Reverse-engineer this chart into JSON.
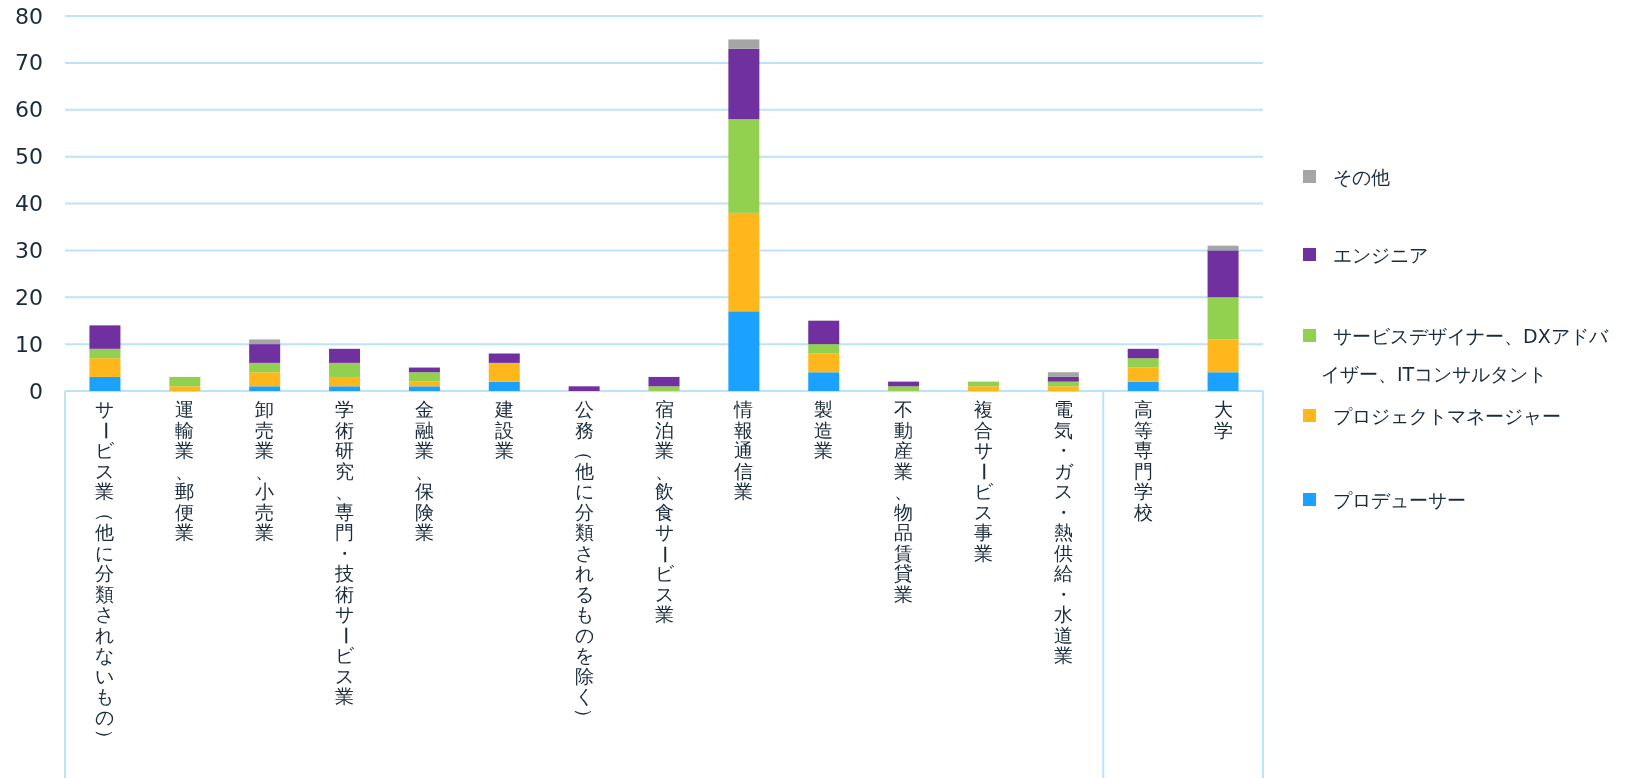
{
  "chart_data": {
    "type": "bar",
    "stacked": true,
    "grid": "y",
    "legend": "right",
    "ylim": [
      0,
      80
    ],
    "yticks": [
      0,
      10,
      20,
      30,
      40,
      50,
      60,
      70,
      80
    ],
    "categories": [
      "サービス業（他に分類されないもの）",
      "運輸業、郵便業",
      "卸売業、小売業",
      "学術研究、専門・技術サービス業",
      "金融業、保険業",
      "建設業",
      "公務（他に分類されるものを除く）",
      "宿泊業、飲食サービス業",
      "情報通信業",
      "製造業",
      "不動産業、物品賃貸業",
      "複合サービス事業",
      "電気・ガス・熱供給・水道業",
      "高等専門学校",
      "大学"
    ],
    "series": [
      {
        "name": "プロデューサー",
        "color": "#1ba1ff",
        "values": [
          3,
          0,
          1,
          1,
          1,
          2,
          0,
          0,
          17,
          4,
          0,
          0,
          0,
          2,
          4
        ]
      },
      {
        "name": "プロジェクトマネージャー",
        "color": "#ffb71b",
        "values": [
          4,
          1,
          3,
          2,
          1,
          4,
          0,
          0,
          21,
          4,
          0,
          1,
          1,
          3,
          7
        ]
      },
      {
        "name": "サービスデザイナー、DXアドバイザー、ITコンサルタント",
        "color": "#92d050",
        "values": [
          2,
          2,
          2,
          3,
          2,
          0,
          0,
          1,
          20,
          2,
          1,
          1,
          1,
          2,
          9
        ]
      },
      {
        "name": "エンジニア",
        "color": "#7030a0",
        "values": [
          5,
          0,
          4,
          3,
          1,
          2,
          1,
          2,
          15,
          5,
          1,
          0,
          1,
          2,
          10
        ]
      },
      {
        "name": "その他",
        "color": "#a5a5a5",
        "values": [
          0,
          0,
          1,
          0,
          0,
          0,
          0,
          0,
          2,
          0,
          0,
          0,
          1,
          0,
          1
        ]
      }
    ]
  }
}
